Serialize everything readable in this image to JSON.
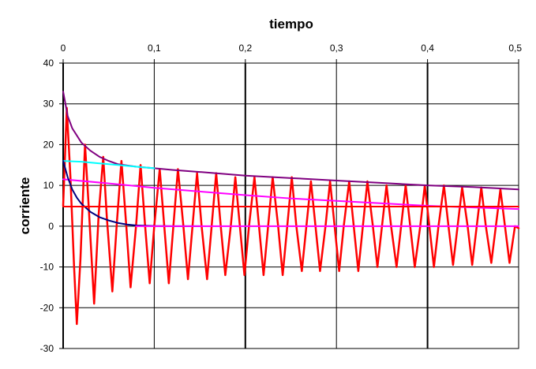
{
  "chart_data": {
    "type": "line",
    "title": "",
    "xlabel": "tiempo",
    "ylabel": "corriente",
    "xlim": [
      0,
      0.5
    ],
    "ylim": [
      -30,
      40
    ],
    "x_ticks": [
      0,
      0.1,
      0.2,
      0.3,
      0.4,
      0.5
    ],
    "x_tick_labels": [
      "0",
      "0,1",
      "0,2",
      "0,3",
      "0,4",
      "0,5"
    ],
    "y_ticks": [
      -30,
      -20,
      -10,
      0,
      10,
      20,
      30,
      40
    ],
    "y_tick_labels": [
      "-30",
      "-20",
      "-10",
      "0",
      "10",
      "20",
      "30",
      "40"
    ],
    "x_axis_position": "top",
    "grid": true,
    "legend": "none",
    "series": [
      {
        "color": "#ff0000",
        "style": "oscillating",
        "x": [
          0,
          0.004,
          0.008,
          0.012,
          0.015,
          0.019,
          0.024,
          0.028,
          0.034,
          0.039,
          0.044,
          0.048,
          0.054,
          0.059,
          0.064,
          0.069,
          0.074,
          0.08,
          0.085,
          0.09,
          0.095,
          0.1,
          0.106,
          0.111,
          0.116,
          0.121,
          0.126,
          0.132,
          0.137,
          0.142,
          0.147,
          0.152,
          0.158,
          0.163,
          0.168,
          0.173,
          0.178,
          0.184,
          0.189,
          0.194,
          0.199,
          0.204,
          0.21,
          0.215,
          0.22,
          0.225,
          0.23,
          0.236,
          0.241,
          0.246,
          0.251,
          0.256,
          0.262,
          0.267,
          0.272,
          0.277,
          0.282,
          0.288,
          0.293,
          0.298,
          0.303,
          0.308,
          0.314,
          0.319,
          0.324,
          0.329,
          0.334,
          0.34,
          0.345,
          0.35,
          0.355,
          0.36,
          0.366,
          0.371,
          0.376,
          0.381,
          0.386,
          0.392,
          0.397,
          0.402,
          0.407,
          0.412,
          0.418,
          0.423,
          0.428,
          0.433,
          0.438,
          0.444,
          0.449,
          0.454,
          0.459,
          0.464,
          0.47,
          0.475,
          0.48,
          0.485,
          0.49,
          0.496,
          0.5
        ],
        "y": [
          5,
          29,
          12,
          -10,
          -24,
          -8,
          20,
          5,
          -19,
          3,
          17,
          2,
          -16,
          1,
          16,
          1,
          -15,
          0,
          15,
          0,
          -14,
          0,
          14,
          0,
          -14,
          0,
          14,
          0,
          -13,
          0,
          13,
          0,
          -13,
          0,
          13,
          0,
          -12,
          0,
          12,
          0,
          -12,
          0,
          12,
          0,
          -12,
          0,
          12,
          0,
          -12,
          0,
          12,
          0,
          -11,
          0,
          11,
          0,
          -11,
          0,
          11,
          0,
          -11,
          0,
          11,
          0,
          -11,
          0,
          11,
          0,
          -10,
          0,
          10,
          0,
          -10,
          0,
          10,
          0,
          -10,
          0,
          10,
          0,
          -10,
          0,
          10,
          0,
          -9.5,
          0,
          9.5,
          0,
          -9.5,
          0,
          9.5,
          0,
          -9,
          0,
          9,
          0,
          -9,
          0,
          -0.5
        ]
      },
      {
        "color": "#800080",
        "style": "envelope",
        "x": [
          0,
          0.005,
          0.01,
          0.02,
          0.03,
          0.04,
          0.05,
          0.06,
          0.08,
          0.1,
          0.12,
          0.15,
          0.2,
          0.25,
          0.3,
          0.35,
          0.4,
          0.45,
          0.5
        ],
        "y": [
          33,
          27,
          24,
          20.5,
          18.5,
          17,
          16,
          15.2,
          14.6,
          14.2,
          13.8,
          13.3,
          12.4,
          11.8,
          11.2,
          10.6,
          10,
          9.6,
          9
        ]
      },
      {
        "color": "#00ffff",
        "style": "line",
        "x": [
          0,
          0.02,
          0.04,
          0.06,
          0.08,
          0.1
        ],
        "y": [
          16,
          15.8,
          15.4,
          15,
          14.6,
          14.2
        ]
      },
      {
        "color": "#ff00ff",
        "style": "line",
        "x": [
          0,
          0.05,
          0.1,
          0.15,
          0.2,
          0.25,
          0.3,
          0.35,
          0.4,
          0.45,
          0.5
        ],
        "y": [
          11.5,
          10.5,
          9.4,
          8.5,
          7.6,
          6.8,
          6.2,
          5.6,
          5,
          4.6,
          4.2
        ]
      },
      {
        "color": "#000080",
        "style": "decay",
        "x": [
          0,
          0.005,
          0.01,
          0.015,
          0.02,
          0.03,
          0.04,
          0.05,
          0.06,
          0.07,
          0.08,
          0.1,
          0.12,
          0.15
        ],
        "y": [
          16,
          12,
          9,
          7,
          5.5,
          3.5,
          2.2,
          1.4,
          0.8,
          0.4,
          0.2,
          0.05,
          0,
          0
        ]
      },
      {
        "color": "#ff0000",
        "style": "constant",
        "x": [
          0,
          0.5
        ],
        "y": [
          4.8,
          4.8
        ]
      },
      {
        "color": "#ff00ff",
        "style": "constant",
        "x": [
          0.08,
          0.5
        ],
        "y": [
          0,
          0
        ]
      }
    ]
  }
}
